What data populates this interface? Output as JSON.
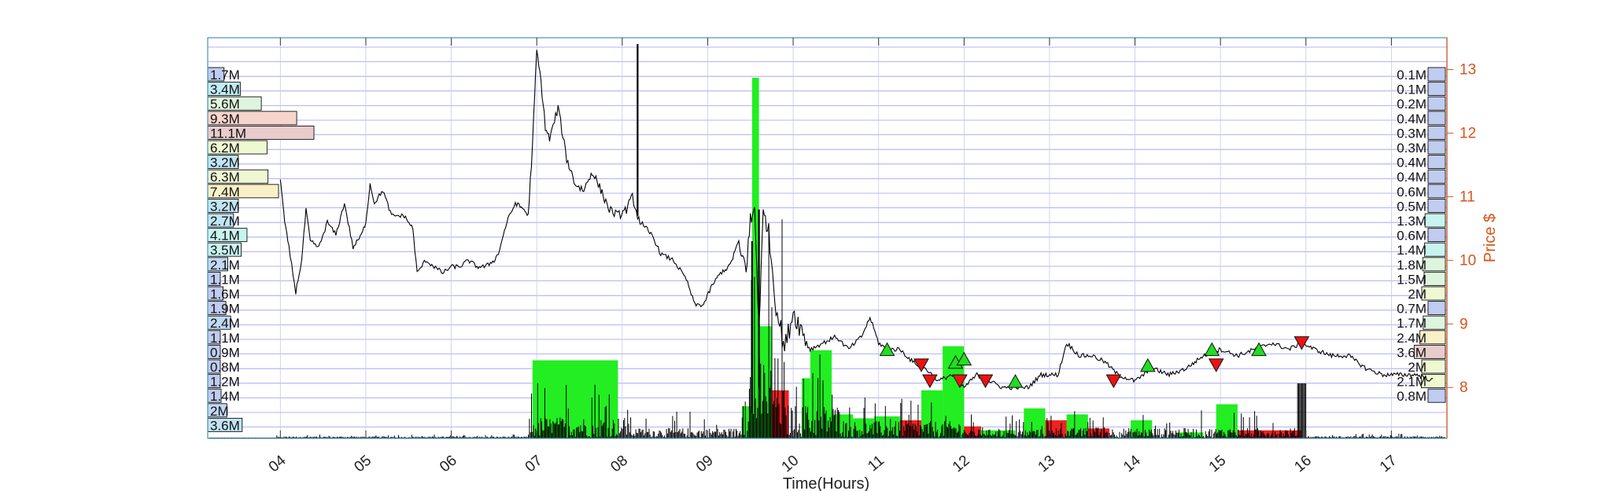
{
  "chart_data": {
    "type": "line",
    "title": "",
    "xlabel": "Time(Hours)",
    "ylabel": "Price $",
    "x_ticks": [
      "04",
      "05",
      "06",
      "07",
      "08",
      "09",
      "10",
      "11",
      "12",
      "13",
      "14",
      "15",
      "16",
      "17"
    ],
    "xlim": [
      3.15,
      17.65
    ],
    "ylim": [
      7.2,
      13.5
    ],
    "y_ticks": [
      8,
      9,
      10,
      11,
      12,
      13
    ],
    "grid": true,
    "price_series": {
      "name": "",
      "x": [
        4.0,
        4.05,
        4.1,
        4.18,
        4.25,
        4.3,
        4.35,
        4.45,
        4.55,
        4.65,
        4.75,
        4.85,
        4.95,
        5.0,
        5.05,
        5.1,
        5.2,
        5.3,
        5.45,
        5.55,
        5.6,
        5.7,
        5.8,
        5.9,
        6.0,
        6.1,
        6.2,
        6.3,
        6.4,
        6.5,
        6.55,
        6.65,
        6.75,
        6.85,
        6.9,
        6.95,
        7.0,
        7.05,
        7.1,
        7.15,
        7.25,
        7.35,
        7.45,
        7.55,
        7.65,
        7.75,
        7.85,
        7.95,
        8.05,
        8.12,
        8.18,
        8.25,
        8.35,
        8.45,
        8.6,
        8.75,
        8.85,
        8.95,
        9.05,
        9.15,
        9.25,
        9.35,
        9.45,
        9.5,
        9.55,
        9.6,
        9.65,
        9.7,
        9.8,
        9.9,
        10.0,
        10.1,
        10.2,
        10.35,
        10.5,
        10.65,
        10.8,
        10.9,
        11.0,
        11.1,
        11.25,
        11.4,
        11.55,
        11.7,
        11.85,
        12.0,
        12.15,
        12.3,
        12.45,
        12.6,
        12.75,
        12.9,
        13.1,
        13.2,
        13.35,
        13.5,
        13.65,
        13.8,
        14.0,
        14.2,
        14.4,
        14.6,
        14.8,
        15.0,
        15.2,
        15.4,
        15.6,
        15.8,
        15.95,
        16.1,
        16.3,
        16.5,
        16.7,
        16.9,
        17.1,
        17.3,
        17.5
      ],
      "y": [
        11.3,
        10.6,
        10.2,
        9.5,
        10.0,
        10.8,
        10.3,
        10.2,
        10.6,
        10.4,
        10.9,
        10.2,
        10.4,
        10.6,
        11.2,
        10.9,
        11.1,
        10.7,
        10.7,
        10.5,
        9.8,
        10.0,
        9.9,
        9.8,
        9.9,
        9.9,
        10.0,
        9.9,
        9.9,
        10.0,
        10.1,
        10.6,
        10.9,
        10.8,
        10.7,
        11.8,
        13.3,
        12.8,
        12.1,
        11.9,
        12.4,
        11.6,
        11.2,
        11.1,
        11.4,
        11.1,
        10.8,
        10.7,
        10.8,
        11.0,
        10.7,
        10.5,
        10.4,
        10.1,
        10.0,
        9.7,
        9.3,
        9.3,
        9.6,
        9.8,
        9.9,
        10.2,
        9.9,
        10.6,
        10.8,
        9.0,
        10.7,
        10.6,
        9.3,
        8.6,
        9.2,
        8.9,
        8.6,
        8.7,
        8.8,
        8.6,
        8.8,
        9.1,
        8.7,
        8.6,
        8.6,
        8.4,
        8.3,
        8.1,
        8.2,
        8.0,
        8.2,
        8.1,
        8.0,
        8.0,
        8.0,
        8.2,
        8.2,
        8.7,
        8.5,
        8.5,
        8.4,
        8.2,
        8.1,
        8.3,
        8.2,
        8.3,
        8.5,
        8.6,
        8.5,
        8.6,
        8.7,
        8.6,
        8.7,
        8.6,
        8.5,
        8.5,
        8.3,
        8.2,
        8.2,
        8.2,
        8.1
      ]
    },
    "spikes": [
      {
        "x": 8.18,
        "low": 10.7,
        "high": 13.4
      },
      {
        "x": 9.52,
        "low": 7.6,
        "high": 10.3
      },
      {
        "x": 9.6,
        "low": 8.0,
        "high": 10.8
      }
    ],
    "buy_markers": {
      "x": [
        11.1,
        11.9,
        12.0,
        12.6,
        14.15,
        14.9,
        15.45
      ],
      "y": [
        8.6,
        8.4,
        8.45,
        8.1,
        8.35,
        8.6,
        8.6
      ]
    },
    "sell_markers": {
      "x": [
        11.5,
        11.6,
        11.95,
        12.25,
        13.75,
        14.95,
        15.95
      ],
      "y": [
        8.35,
        8.1,
        8.1,
        8.1,
        8.1,
        8.35,
        8.7
      ]
    },
    "volume_blocks": [
      {
        "start": 6.95,
        "end": 7.95,
        "rel": 0.195,
        "color": "#22ee22"
      },
      {
        "start": 9.4,
        "end": 9.52,
        "rel": 0.08,
        "color": "#22ee22"
      },
      {
        "start": 9.52,
        "end": 9.6,
        "rel": 0.9,
        "color": "#22ee22"
      },
      {
        "start": 9.6,
        "end": 9.75,
        "rel": 0.28,
        "color": "#22ee22"
      },
      {
        "start": 9.75,
        "end": 9.95,
        "rel": 0.12,
        "color": "#ee2222"
      },
      {
        "start": 10.1,
        "end": 10.2,
        "rel": 0.15,
        "color": "#22ee22"
      },
      {
        "start": 10.2,
        "end": 10.45,
        "rel": 0.22,
        "color": "#22ee22"
      },
      {
        "start": 10.45,
        "end": 10.7,
        "rel": 0.06,
        "color": "#22ee22"
      },
      {
        "start": 10.7,
        "end": 10.95,
        "rel": 0.05,
        "color": "#22ee22"
      },
      {
        "start": 10.95,
        "end": 11.25,
        "rel": 0.055,
        "color": "#22ee22"
      },
      {
        "start": 11.25,
        "end": 11.5,
        "rel": 0.045,
        "color": "#ee2222"
      },
      {
        "start": 11.5,
        "end": 11.75,
        "rel": 0.12,
        "color": "#22ee22"
      },
      {
        "start": 11.75,
        "end": 12.0,
        "rel": 0.23,
        "color": "#22ee22"
      },
      {
        "start": 12.0,
        "end": 12.2,
        "rel": 0.03,
        "color": "#ee2222"
      },
      {
        "start": 12.2,
        "end": 12.6,
        "rel": 0.02,
        "color": "#22ee22"
      },
      {
        "start": 12.7,
        "end": 12.95,
        "rel": 0.075,
        "color": "#22ee22"
      },
      {
        "start": 12.95,
        "end": 13.2,
        "rel": 0.045,
        "color": "#ee2222"
      },
      {
        "start": 13.2,
        "end": 13.45,
        "rel": 0.06,
        "color": "#22ee22"
      },
      {
        "start": 13.45,
        "end": 13.7,
        "rel": 0.025,
        "color": "#ee2222"
      },
      {
        "start": 13.95,
        "end": 14.2,
        "rel": 0.045,
        "color": "#22ee22"
      },
      {
        "start": 14.5,
        "end": 14.8,
        "rel": 0.015,
        "color": "#22ee22"
      },
      {
        "start": 14.95,
        "end": 15.2,
        "rel": 0.085,
        "color": "#22ee22"
      },
      {
        "start": 15.2,
        "end": 15.95,
        "rel": 0.02,
        "color": "#ee2222"
      }
    ],
    "left_volume_profile": [
      {
        "label": "1.7M",
        "color": "#c0ccf0"
      },
      {
        "label": "3.4M",
        "color": "#c0ecf4"
      },
      {
        "label": "5.6M",
        "color": "#ddf5dd"
      },
      {
        "label": "9.3M",
        "color": "#f8d5cc"
      },
      {
        "label": "11.1M",
        "color": "#e8cccc"
      },
      {
        "label": "6.2M",
        "color": "#eef8d2"
      },
      {
        "label": "3.2M",
        "color": "#c0e4f4"
      },
      {
        "label": "6.3M",
        "color": "#eef8d2"
      },
      {
        "label": "7.4M",
        "color": "#faf0c8"
      },
      {
        "label": "3.2M",
        "color": "#c0e4f4"
      },
      {
        "label": "2.7M",
        "color": "#c0e4f4"
      },
      {
        "label": "4.1M",
        "color": "#c8f4f0"
      },
      {
        "label": "3.5M",
        "color": "#c8f4f0"
      },
      {
        "label": "2.1M",
        "color": "#c0d8f4"
      },
      {
        "label": "1.1M",
        "color": "#c0ccf0"
      },
      {
        "label": "1.6M",
        "color": "#c0ccf0"
      },
      {
        "label": "1.9M",
        "color": "#c0ccf0"
      },
      {
        "label": "2.4M",
        "color": "#c0d8f4"
      },
      {
        "label": "1.1M",
        "color": "#c0ccf0"
      },
      {
        "label": "0.9M",
        "color": "#c0ccf0"
      },
      {
        "label": "0.8M",
        "color": "#c0ccf0"
      },
      {
        "label": "1.2M",
        "color": "#c0ccf0"
      },
      {
        "label": "1.4M",
        "color": "#c0ccf0"
      },
      {
        "label": "2M",
        "color": "#c0d8f4"
      },
      {
        "label": "3.6M",
        "color": "#c0e4f4"
      }
    ],
    "right_volume_profile": [
      {
        "label": "0.1M",
        "color": "#c0ccf0"
      },
      {
        "label": "0.1M",
        "color": "#c0ccf0"
      },
      {
        "label": "0.2M",
        "color": "#c0ccf0"
      },
      {
        "label": "0.4M",
        "color": "#c0ccf0"
      },
      {
        "label": "0.3M",
        "color": "#c0ccf0"
      },
      {
        "label": "0.3M",
        "color": "#c0ccf0"
      },
      {
        "label": "0.4M",
        "color": "#c0ccf0"
      },
      {
        "label": "0.4M",
        "color": "#c0ccf0"
      },
      {
        "label": "0.6M",
        "color": "#c0ccf0"
      },
      {
        "label": "0.5M",
        "color": "#c0ccf0"
      },
      {
        "label": "1.3M",
        "color": "#c8f4f0"
      },
      {
        "label": "0.6M",
        "color": "#c0ccf0"
      },
      {
        "label": "1.4M",
        "color": "#c8f4f0"
      },
      {
        "label": "1.8M",
        "color": "#ddf5dd"
      },
      {
        "label": "1.5M",
        "color": "#ddf5dd"
      },
      {
        "label": "2M",
        "color": "#eef8d2"
      },
      {
        "label": "0.7M",
        "color": "#c0ccf0"
      },
      {
        "label": "1.7M",
        "color": "#ddf5dd"
      },
      {
        "label": "2.4M",
        "color": "#faf0c8"
      },
      {
        "label": "3.6M",
        "color": "#e8cccc"
      },
      {
        "label": "2M",
        "color": "#eef8d2"
      },
      {
        "label": "2.1M",
        "color": "#eef8d2"
      },
      {
        "label": "0.8M",
        "color": "#c0ccf0"
      }
    ],
    "colors": {
      "axis_right": "#d95319",
      "grid": "#9a9aee",
      "price_line": "#000000",
      "buy_marker": "#22dd22",
      "sell_marker": "#ee1111",
      "frame": "#4a90b8"
    }
  }
}
